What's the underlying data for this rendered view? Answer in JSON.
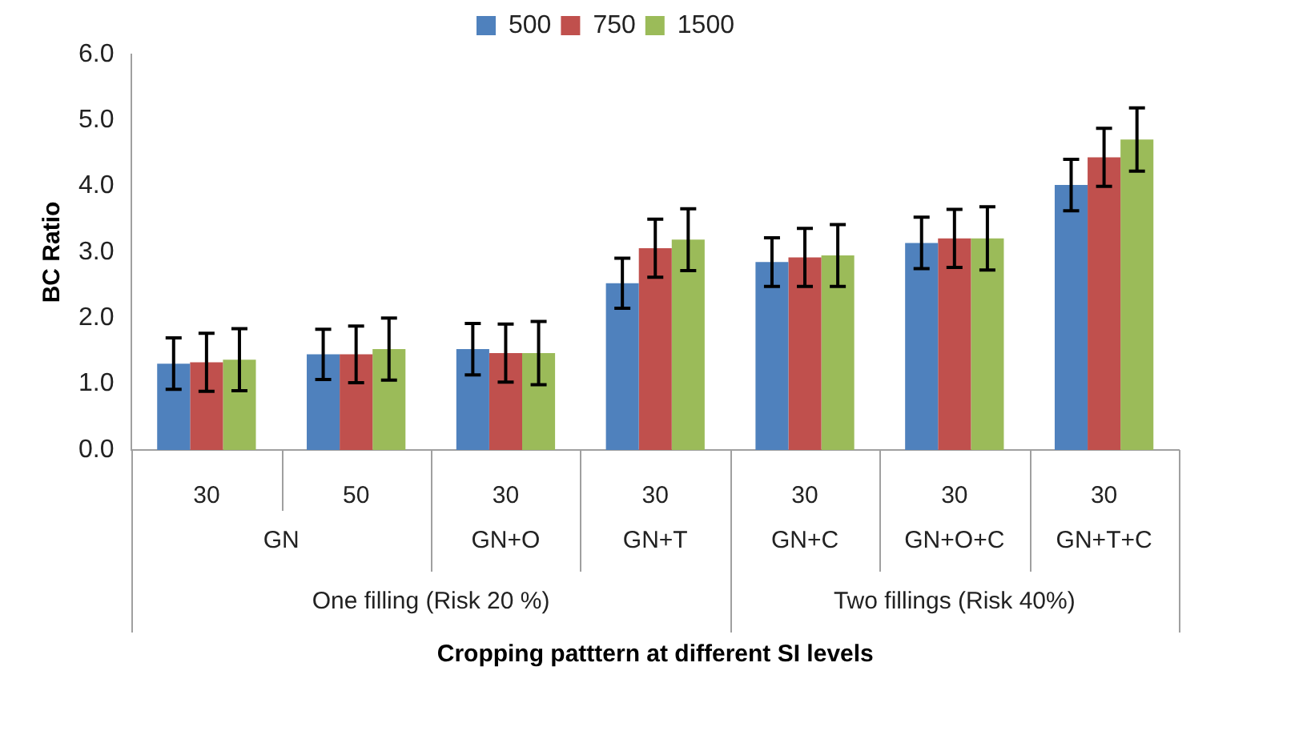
{
  "chart_data": {
    "type": "bar",
    "ylabel": "BC Ratio",
    "categories": [
      "30",
      "50",
      "30",
      "30",
      "30",
      "30",
      "30"
    ],
    "series": [
      {
        "name": "500",
        "color": "#4f81bd",
        "values": [
          1.31,
          1.45,
          1.53,
          2.53,
          2.85,
          3.14,
          4.02
        ],
        "errors": [
          0.39,
          0.38,
          0.39,
          0.38,
          0.37,
          0.39,
          0.39
        ]
      },
      {
        "name": "750",
        "color": "#c0504d",
        "values": [
          1.33,
          1.45,
          1.47,
          3.06,
          2.92,
          3.21,
          4.44
        ],
        "errors": [
          0.44,
          0.43,
          0.44,
          0.44,
          0.44,
          0.44,
          0.44
        ]
      },
      {
        "name": "1500",
        "color": "#9bbb59",
        "values": [
          1.37,
          1.53,
          1.47,
          3.19,
          2.95,
          3.21,
          4.71
        ],
        "errors": [
          0.47,
          0.47,
          0.48,
          0.47,
          0.47,
          0.48,
          0.48
        ]
      }
    ],
    "ylim": [
      0,
      6
    ],
    "yticks": [
      {
        "value": 0,
        "label": "0.0"
      },
      {
        "value": 1,
        "label": "1.0"
      },
      {
        "value": 2,
        "label": "2.0"
      },
      {
        "value": 3,
        "label": "3.0"
      },
      {
        "value": 4,
        "label": "4.0"
      },
      {
        "value": 5,
        "label": "5.0"
      },
      {
        "value": 6,
        "label": "6.0"
      }
    ],
    "annotations": [
      "GN",
      "GN+O",
      "GN+T",
      "GN+C",
      "GN+O+C",
      "GN+T+C",
      "One filling (Risk 20 %)",
      "Two fillings (Risk 40%)",
      "Cropping patttern at different SI levels"
    ],
    "grid": false,
    "legend": "top"
  }
}
